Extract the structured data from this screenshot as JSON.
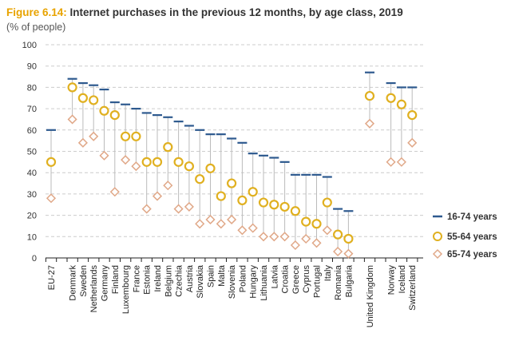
{
  "chart_data": {
    "type": "scatter",
    "title_prefix": "Figure 6.14:",
    "title": "Internet purchases in the previous 12 months, by age class, 2019",
    "subtitle": "(% of people)",
    "ylim": [
      0,
      100
    ],
    "yticks": [
      0,
      10,
      20,
      30,
      40,
      50,
      60,
      70,
      80,
      90,
      100
    ],
    "grid": true,
    "legend_position": "right",
    "categories": [
      "EU-27",
      "Denmark",
      "Sweden",
      "Netherlands",
      "Germany",
      "Finland",
      "Luxembourg",
      "France",
      "Estonia",
      "Ireland",
      "Belgium",
      "Czechia",
      "Austria",
      "Slovakia",
      "Spain",
      "Malta",
      "Slovenia",
      "Poland",
      "Hungary",
      "Lithuania",
      "Latvia",
      "Croatia",
      "Greece",
      "Cyprus",
      "Portugal",
      "Italy",
      "Romania",
      "Bulgaria",
      "United Kingdom",
      "Norway",
      "Iceland",
      "Switzerland"
    ],
    "series": [
      {
        "name": "16-74 years",
        "marker": "dash",
        "color": "#2e5a8f",
        "values": [
          60,
          84,
          82,
          81,
          79,
          73,
          72,
          70,
          68,
          67,
          66,
          64,
          62,
          60,
          58,
          58,
          56,
          54,
          49,
          48,
          47,
          45,
          39,
          39,
          39,
          38,
          23,
          22,
          87,
          82,
          80,
          80
        ]
      },
      {
        "name": "55-64 years",
        "marker": "circle",
        "color": "#e0b020",
        "values": [
          45,
          80,
          75,
          74,
          69,
          67,
          57,
          57,
          45,
          45,
          52,
          45,
          43,
          37,
          42,
          29,
          35,
          27,
          31,
          26,
          25,
          24,
          22,
          17,
          16,
          26,
          11,
          9,
          76,
          75,
          72,
          67
        ]
      },
      {
        "name": "65-74 years",
        "marker": "diamond",
        "color": "#e0a888",
        "values": [
          28,
          65,
          54,
          57,
          48,
          31,
          46,
          43,
          23,
          29,
          34,
          23,
          24,
          16,
          18,
          16,
          18,
          13,
          14,
          10,
          10,
          10,
          6,
          9,
          7,
          13,
          3,
          2,
          63,
          45,
          45,
          54
        ]
      }
    ]
  }
}
